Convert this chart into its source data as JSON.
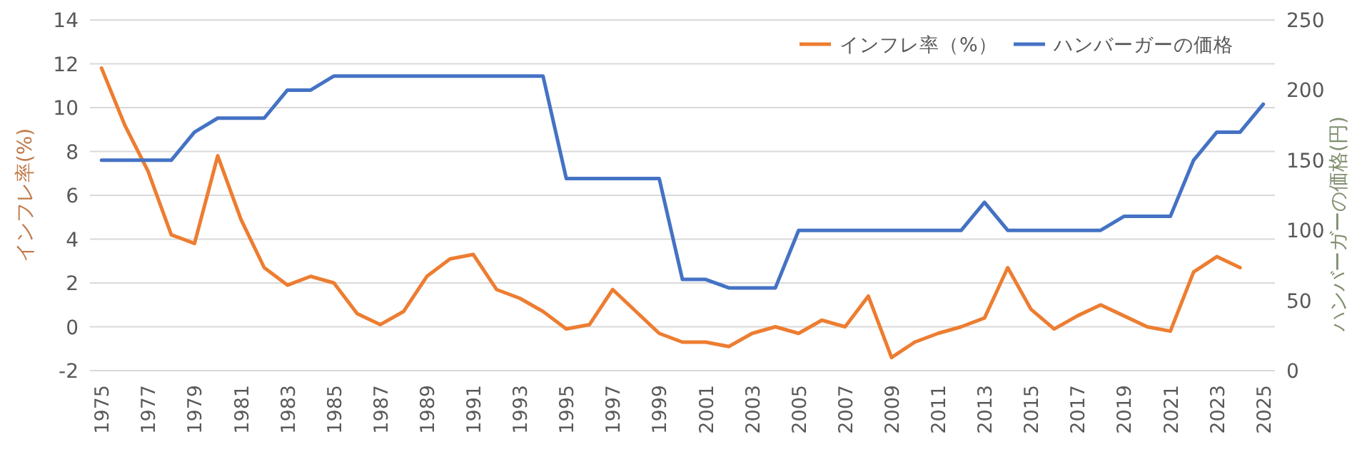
{
  "chart_data": {
    "type": "line",
    "ylabel": "インフレ率(%)",
    "y2label": "ハンバーガーの価格(円)",
    "categories": [
      "1975",
      null,
      "1977",
      null,
      "1979",
      null,
      "1981",
      null,
      "1983",
      null,
      "1985",
      null,
      "1987",
      null,
      "1989",
      null,
      "1991",
      null,
      "1993",
      null,
      "1995",
      null,
      "1997",
      null,
      "1999",
      null,
      "2001",
      null,
      "2003",
      null,
      "2005",
      null,
      "2007",
      null,
      "2009",
      null,
      "2011",
      null,
      "2013",
      null,
      "2015",
      null,
      "2017",
      null,
      "2019",
      null,
      "2021",
      null,
      "2023",
      null,
      "2025"
    ],
    "series": [
      {
        "name": "インフレ率（%）",
        "color": "#ed7d31",
        "values": [
          11.8,
          9.2,
          7.1,
          4.2,
          3.8,
          7.8,
          4.9,
          2.7,
          1.9,
          2.3,
          2.0,
          0.6,
          0.1,
          0.7,
          2.3,
          3.1,
          3.3,
          1.7,
          1.3,
          0.7,
          -0.1,
          0.1,
          1.7,
          0.7,
          -0.3,
          -0.7,
          -0.7,
          -0.9,
          -0.3,
          0.0,
          -0.3,
          0.3,
          0.0,
          1.4,
          -1.4,
          -0.7,
          -0.3,
          0.0,
          0.4,
          2.7,
          0.8,
          -0.1,
          0.5,
          1.0,
          0.5,
          0.0,
          -0.2,
          2.5,
          3.2,
          2.7,
          null
        ]
      },
      {
        "name": "ハンバーガーの価格",
        "color": "#4472c4",
        "axis": "y2",
        "values": [
          150,
          150,
          150,
          150,
          170,
          180,
          180,
          180,
          200,
          200,
          210,
          210,
          210,
          210,
          210,
          210,
          210,
          210,
          210,
          210,
          137,
          137,
          137,
          137,
          137,
          65,
          65,
          59,
          59,
          59,
          100,
          100,
          100,
          100,
          100,
          100,
          100,
          100,
          120,
          100,
          100,
          100,
          100,
          100,
          110,
          110,
          110,
          150,
          170,
          170,
          190
        ]
      }
    ],
    "ylim": [
      -2,
      14
    ],
    "yticks": [
      -2,
      0,
      2,
      4,
      6,
      8,
      10,
      12,
      14
    ],
    "y2lim": [
      0,
      250
    ],
    "y2ticks": [
      0,
      50,
      100,
      150,
      200,
      250
    ],
    "grid": "y",
    "legend": "top right",
    "line_style": "solid",
    "marker": "none"
  }
}
